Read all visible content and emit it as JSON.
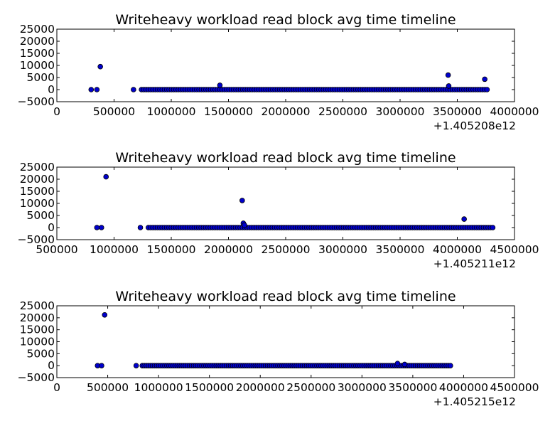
{
  "chart_data": [
    {
      "type": "scatter",
      "title": "Writeheavy workload read block avg time timeline",
      "x_offset_label": "+1.405208e12",
      "x_offset": 1405208000000,
      "xlim": [
        0,
        4000000
      ],
      "ylim": [
        -5000,
        25000
      ],
      "xticks": [
        "0",
        "500000",
        "1000000",
        "1500000",
        "2000000",
        "2500000",
        "3000000",
        "3500000",
        "4000000"
      ],
      "yticks": [
        "−5000",
        "0",
        "5000",
        "10000",
        "15000",
        "20000",
        "25000"
      ],
      "series": [
        {
          "x": [
            300000,
            350000,
            380000,
            670000,
            1425000,
            3420000,
            3425000,
            3740000
          ],
          "y": [
            0,
            0,
            9500,
            0,
            1800,
            6000,
            1500,
            4300
          ]
        }
      ],
      "dense_band": {
        "x_from": 740000,
        "x_to": 3760000,
        "y": 0
      }
    },
    {
      "type": "scatter",
      "title": "Writeheavy workload read block avg time timeline",
      "x_offset_label": "+1.405211e12",
      "x_offset": 1405211000000,
      "xlim": [
        500000,
        4500000
      ],
      "ylim": [
        -5000,
        25000
      ],
      "xticks": [
        "500000",
        "1000000",
        "1500000",
        "2000000",
        "2500000",
        "3000000",
        "3500000",
        "4000000",
        "4500000"
      ],
      "yticks": [
        "−5000",
        "0",
        "5000",
        "10000",
        "15000",
        "20000",
        "25000"
      ],
      "series": [
        {
          "x": [
            850000,
            890000,
            930000,
            1230000,
            2120000,
            2130000,
            2140000,
            4060000
          ],
          "y": [
            0,
            0,
            21000,
            0,
            11200,
            1800,
            1000,
            3500
          ]
        }
      ],
      "dense_band": {
        "x_from": 1300000,
        "x_to": 4310000,
        "y": 0
      }
    },
    {
      "type": "scatter",
      "title": "Writeheavy workload read block avg time timeline",
      "x_offset_label": "+1.405215e12",
      "x_offset": 1405215000000,
      "xlim": [
        0,
        4500000
      ],
      "ylim": [
        -5000,
        25000
      ],
      "xticks": [
        "0",
        "500000",
        "1000000",
        "1500000",
        "2000000",
        "2500000",
        "3000000",
        "3500000",
        "4000000",
        "4500000"
      ],
      "yticks": [
        "−5000",
        "0",
        "5000",
        "10000",
        "15000",
        "20000",
        "25000"
      ],
      "series": [
        {
          "x": [
            400000,
            440000,
            470000,
            780000,
            3350000,
            3420000
          ],
          "y": [
            0,
            0,
            21200,
            0,
            900,
            500
          ]
        }
      ],
      "dense_band": {
        "x_from": 840000,
        "x_to": 3870000,
        "y": 0
      }
    }
  ]
}
